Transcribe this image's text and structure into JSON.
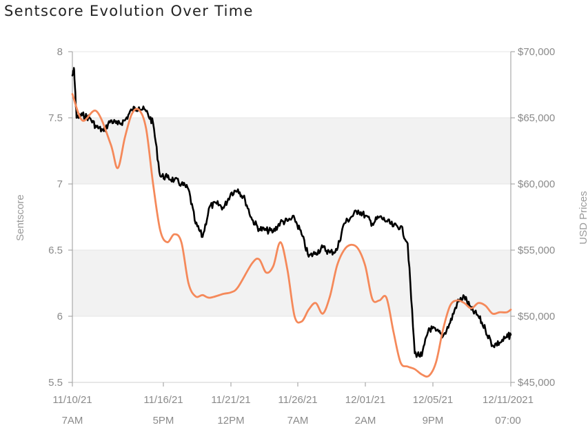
{
  "chart_data": {
    "type": "line",
    "title": "Sentscore Evolution Over Time",
    "ylabel": "Sentscore",
    "y2label": "USD Prices",
    "ylim": [
      5.5,
      8
    ],
    "y2lim": [
      45000,
      70000
    ],
    "yticks": [
      "8",
      "7.5",
      "7",
      "6.5",
      "6",
      "5.5"
    ],
    "y2ticks": [
      "$70,000",
      "$65,000",
      "$60,000",
      "$55,000",
      "$50,000",
      "$45,000"
    ],
    "xticks": [
      {
        "date": "11/10/21",
        "time": "7AM"
      },
      {
        "date": "11/16/21",
        "time": "5PM"
      },
      {
        "date": "11/21/21",
        "time": "12PM"
      },
      {
        "date": "11/26/21",
        "time": "7AM"
      },
      {
        "date": "12/01/21",
        "time": "2AM"
      },
      {
        "date": "12/05/21",
        "time": "9PM"
      },
      {
        "date": "12/11/2021",
        "time": "07:00"
      }
    ],
    "grid": true,
    "colors": {
      "sentscore": "#000000",
      "price": "#f5895a",
      "band": "#f2f2f2",
      "grid": "#e6e6e6"
    },
    "series": [
      {
        "axis": "left",
        "color": "#000000",
        "x": [
          "2021-11-10 07:00",
          "2021-11-10 10:00",
          "2021-11-10 14:00",
          "2021-11-11 00:00",
          "2021-11-11 12:00",
          "2021-11-12 00:00",
          "2021-11-12 12:00",
          "2021-11-13 00:00",
          "2021-11-13 12:00",
          "2021-11-14 00:00",
          "2021-11-14 12:00",
          "2021-11-15 00:00",
          "2021-11-15 12:00",
          "2021-11-16 00:00",
          "2021-11-16 12:00",
          "2021-11-17 00:00",
          "2021-11-17 12:00",
          "2021-11-18 00:00",
          "2021-11-18 12:00",
          "2021-11-19 00:00",
          "2021-11-19 12:00",
          "2021-11-20 00:00",
          "2021-11-20 12:00",
          "2021-11-21 00:00",
          "2021-11-21 12:00",
          "2021-11-22 00:00",
          "2021-11-22 12:00",
          "2021-11-23 00:00",
          "2021-11-23 12:00",
          "2021-11-24 00:00",
          "2021-11-24 12:00",
          "2021-11-25 00:00",
          "2021-11-25 12:00",
          "2021-11-26 00:00",
          "2021-11-26 12:00",
          "2021-11-27 00:00",
          "2021-11-27 12:00",
          "2021-11-28 00:00",
          "2021-11-28 12:00",
          "2021-11-29 00:00",
          "2021-11-29 12:00",
          "2021-11-30 00:00",
          "2021-11-30 12:00",
          "2021-12-01 00:00",
          "2021-12-01 12:00",
          "2021-12-02 00:00",
          "2021-12-02 12:00",
          "2021-12-03 00:00",
          "2021-12-03 12:00",
          "2021-12-04 00:00",
          "2021-12-04 12:00",
          "2021-12-05 00:00",
          "2021-12-05 12:00",
          "2021-12-06 00:00",
          "2021-12-06 12:00",
          "2021-12-07 00:00",
          "2021-12-07 12:00",
          "2021-12-08 00:00",
          "2021-12-08 12:00",
          "2021-12-09 00:00",
          "2021-12-09 12:00",
          "2021-12-10 00:00",
          "2021-12-10 12:00",
          "2021-12-11 00:00",
          "2021-12-11 07:00"
        ],
        "values": [
          7.82,
          7.86,
          7.5,
          7.52,
          7.5,
          7.43,
          7.4,
          7.48,
          7.45,
          7.48,
          7.56,
          7.58,
          7.55,
          7.46,
          7.06,
          7.05,
          7.03,
          7.0,
          6.96,
          6.7,
          6.6,
          6.83,
          6.85,
          6.82,
          6.93,
          6.96,
          6.88,
          6.73,
          6.66,
          6.65,
          6.64,
          6.71,
          6.72,
          6.74,
          6.62,
          6.45,
          6.48,
          6.52,
          6.48,
          6.5,
          6.7,
          6.75,
          6.8,
          6.76,
          6.7,
          6.75,
          6.72,
          6.68,
          6.68,
          6.55,
          5.72,
          5.7,
          5.91,
          5.89,
          5.85,
          5.95,
          6.1,
          6.15,
          6.05,
          6.0,
          5.9,
          5.78,
          5.8,
          5.84,
          5.86
        ]
      },
      {
        "axis": "right",
        "color": "#f5895a",
        "x": [
          "2021-11-10 07:00",
          "2021-11-11 00:00",
          "2021-11-12 00:00",
          "2021-11-13 00:00",
          "2021-11-13 12:00",
          "2021-11-14 00:00",
          "2021-11-14 12:00",
          "2021-11-15 00:00",
          "2021-11-15 12:00",
          "2021-11-16 00:00",
          "2021-11-16 12:00",
          "2021-11-17 00:00",
          "2021-11-17 12:00",
          "2021-11-18 00:00",
          "2021-11-18 12:00",
          "2021-11-19 00:00",
          "2021-11-19 12:00",
          "2021-11-20 00:00",
          "2021-11-21 00:00",
          "2021-11-21 12:00",
          "2021-11-22 00:00",
          "2021-11-23 00:00",
          "2021-11-23 12:00",
          "2021-11-24 00:00",
          "2021-11-24 12:00",
          "2021-11-25 00:00",
          "2021-11-25 12:00",
          "2021-11-26 00:00",
          "2021-11-26 12:00",
          "2021-11-27 00:00",
          "2021-11-27 12:00",
          "2021-11-28 00:00",
          "2021-11-28 12:00",
          "2021-11-29 00:00",
          "2021-11-29 12:00",
          "2021-11-30 00:00",
          "2021-11-30 12:00",
          "2021-12-01 00:00",
          "2021-12-01 12:00",
          "2021-12-02 00:00",
          "2021-12-02 12:00",
          "2021-12-03 00:00",
          "2021-12-03 12:00",
          "2021-12-04 00:00",
          "2021-12-04 12:00",
          "2021-12-05 00:00",
          "2021-12-05 12:00",
          "2021-12-06 00:00",
          "2021-12-06 12:00",
          "2021-12-07 00:00",
          "2021-12-07 12:00",
          "2021-12-08 00:00",
          "2021-12-08 12:00",
          "2021-12-09 00:00",
          "2021-12-09 12:00",
          "2021-12-10 00:00",
          "2021-12-10 12:00",
          "2021-12-11 00:00",
          "2021-12-11 07:00"
        ],
        "values": [
          66.8,
          64.8,
          65.5,
          63.0,
          61.2,
          63.5,
          65.3,
          65.6,
          64.2,
          60.0,
          56.5,
          55.6,
          56.2,
          55.6,
          52.5,
          51.5,
          51.6,
          51.4,
          51.7,
          51.8,
          52.2,
          54.0,
          54.3,
          53.3,
          53.8,
          55.6,
          53.5,
          50.0,
          49.6,
          50.5,
          51.0,
          50.2,
          51.5,
          53.8,
          55.0,
          55.4,
          55.1,
          53.8,
          51.3,
          51.2,
          51.4,
          48.8,
          46.5,
          46.2,
          46.0,
          45.6,
          45.5,
          46.5,
          49.0,
          50.8,
          51.2,
          51.0,
          50.6,
          51.0,
          50.8,
          50.2,
          50.3,
          50.3,
          50.5
        ]
      }
    ]
  }
}
